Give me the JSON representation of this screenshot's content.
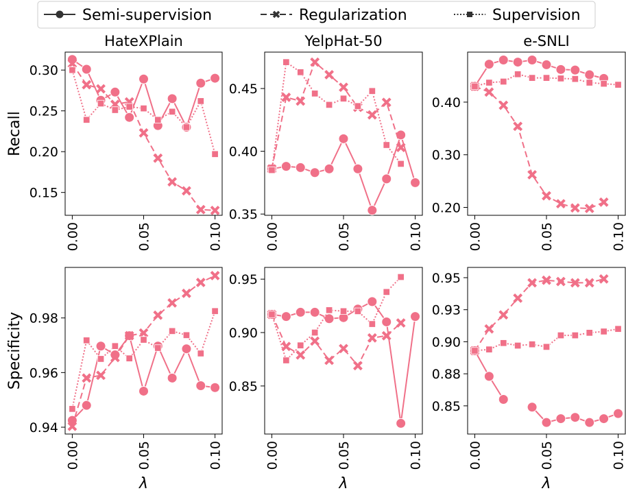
{
  "figure": {
    "legend": [
      {
        "name": "Semi-supervision",
        "style": "solid",
        "marker": "circle"
      },
      {
        "name": "Regularization",
        "style": "dashed",
        "marker": "x"
      },
      {
        "name": "Supervision",
        "style": "dotted",
        "marker": "square"
      }
    ],
    "row_labels": [
      "Recall",
      "Specificity"
    ],
    "xlabel": "λ",
    "color": "#f07088",
    "legend_placement": "top-center"
  },
  "chart_data": [
    {
      "type": "line",
      "title": "HateXPlain",
      "ylabel": "Recall",
      "xlabel": "",
      "x": [
        0,
        0.01,
        0.02,
        0.03,
        0.04,
        0.05,
        0.06,
        0.07,
        0.08,
        0.09,
        0.1
      ],
      "xlim": [
        -0.005,
        0.105
      ],
      "xticks": [
        0,
        0.05,
        0.1
      ],
      "xticklabels": [
        "0.00",
        "0.05",
        "0.10"
      ],
      "ylim": [
        0.122,
        0.322
      ],
      "yticks": [
        0.15,
        0.2,
        0.25,
        0.3
      ],
      "yticklabels": [
        "0.15",
        "0.20",
        "0.25",
        "0.30"
      ],
      "series": [
        {
          "name": "Semi-supervision",
          "values": [
            0.313,
            0.301,
            0.263,
            0.273,
            0.242,
            0.289,
            0.232,
            0.265,
            0.23,
            0.284,
            0.29
          ]
        },
        {
          "name": "Regularization",
          "values": [
            0.308,
            0.282,
            0.277,
            0.258,
            0.261,
            0.223,
            0.192,
            0.163,
            0.152,
            0.129,
            0.128
          ]
        },
        {
          "name": "Supervision",
          "values": [
            0.3,
            0.239,
            0.259,
            0.251,
            0.255,
            0.253,
            0.239,
            0.249,
            0.23,
            0.262,
            0.197
          ]
        }
      ]
    },
    {
      "type": "line",
      "title": "YelpHat-50",
      "ylabel": "",
      "xlabel": "",
      "x": [
        0,
        0.01,
        0.02,
        0.03,
        0.04,
        0.05,
        0.06,
        0.07,
        0.08,
        0.09,
        0.1
      ],
      "xlim": [
        -0.005,
        0.105
      ],
      "xticks": [
        0,
        0.05,
        0.1
      ],
      "xticklabels": [
        "0.00",
        "0.05",
        "0.10"
      ],
      "ylim": [
        0.349,
        0.479
      ],
      "yticks": [
        0.35,
        0.4,
        0.45
      ],
      "yticklabels": [
        "0.35",
        "0.40",
        "0.45"
      ],
      "series": [
        {
          "name": "Semi-supervision",
          "values": [
            0.386,
            0.388,
            0.387,
            0.383,
            0.386,
            0.41,
            0.386,
            0.353,
            0.378,
            0.413,
            0.375
          ]
        },
        {
          "name": "Regularization",
          "values": [
            0.386,
            0.443,
            0.44,
            0.471,
            0.461,
            0.451,
            0.435,
            0.429,
            0.439,
            0.403,
            null
          ]
        },
        {
          "name": "Supervision",
          "values": [
            0.385,
            0.471,
            0.463,
            0.446,
            0.437,
            0.442,
            0.436,
            0.448,
            0.405,
            0.39,
            null
          ]
        }
      ]
    },
    {
      "type": "line",
      "title": "e-SNLI",
      "ylabel": "",
      "xlabel": "",
      "x": [
        0,
        0.01,
        0.02,
        0.03,
        0.04,
        0.05,
        0.06,
        0.07,
        0.08,
        0.09,
        0.1
      ],
      "xlim": [
        -0.005,
        0.105
      ],
      "xticks": [
        0,
        0.05,
        0.1
      ],
      "xticklabels": [
        "0.00",
        "0.05",
        "0.10"
      ],
      "ylim": [
        0.185,
        0.495
      ],
      "yticks": [
        0.2,
        0.3,
        0.4
      ],
      "yticklabels": [
        "0.20",
        "0.30",
        "0.40"
      ],
      "series": [
        {
          "name": "Semi-supervision",
          "values": [
            0.43,
            0.472,
            0.48,
            0.476,
            0.48,
            0.471,
            0.462,
            0.461,
            0.452,
            0.445,
            null
          ]
        },
        {
          "name": "Regularization",
          "values": [
            0.43,
            0.419,
            0.394,
            0.354,
            0.262,
            0.222,
            0.207,
            0.199,
            0.198,
            0.21,
            null
          ]
        },
        {
          "name": "Supervision",
          "values": [
            0.43,
            0.437,
            0.439,
            0.453,
            0.446,
            0.446,
            0.445,
            0.444,
            0.437,
            0.435,
            0.433
          ]
        }
      ]
    },
    {
      "type": "line",
      "title": "",
      "ylabel": "Specificity",
      "xlabel": "λ",
      "x": [
        0,
        0.01,
        0.02,
        0.03,
        0.04,
        0.05,
        0.06,
        0.07,
        0.08,
        0.09,
        0.1
      ],
      "xlim": [
        -0.005,
        0.105
      ],
      "xticks": [
        0,
        0.05,
        0.1
      ],
      "xticklabels": [
        "0.00",
        "0.05",
        "0.10"
      ],
      "ylim": [
        0.9375,
        0.9985
      ],
      "yticks": [
        0.94,
        0.96,
        0.98
      ],
      "yticklabels": [
        "0.94",
        "0.96",
        "0.98"
      ],
      "series": [
        {
          "name": "Semi-supervision",
          "values": [
            0.9425,
            0.948,
            0.9697,
            0.9665,
            0.9735,
            0.9532,
            0.9697,
            0.958,
            0.9687,
            0.9552,
            0.9545
          ]
        },
        {
          "name": "Regularization",
          "values": [
            0.9403,
            0.958,
            0.959,
            0.9655,
            0.9735,
            0.9745,
            0.981,
            0.9855,
            0.989,
            0.993,
            0.9955
          ]
        },
        {
          "name": "Supervision",
          "values": [
            0.9467,
            0.9718,
            0.965,
            0.9697,
            0.9652,
            0.972,
            0.969,
            0.9752,
            0.9737,
            0.967,
            0.9825
          ]
        }
      ]
    },
    {
      "type": "line",
      "title": "",
      "ylabel": "",
      "xlabel": "λ",
      "x": [
        0,
        0.01,
        0.02,
        0.03,
        0.04,
        0.05,
        0.06,
        0.07,
        0.08,
        0.09,
        0.1
      ],
      "xlim": [
        -0.005,
        0.105
      ],
      "xticks": [
        0,
        0.05,
        0.1
      ],
      "xticklabels": [
        "0.00",
        "0.05",
        "0.10"
      ],
      "ylim": [
        0.805,
        0.961
      ],
      "yticks": [
        0.85,
        0.9,
        0.95
      ],
      "yticklabels": [
        "0.85",
        "0.90",
        "0.95"
      ],
      "series": [
        {
          "name": "Semi-supervision",
          "values": [
            0.917,
            0.915,
            0.919,
            0.919,
            0.913,
            0.914,
            0.922,
            0.929,
            0.91,
            0.815,
            0.915
          ]
        },
        {
          "name": "Regularization",
          "values": [
            0.917,
            0.887,
            0.879,
            0.892,
            0.874,
            0.885,
            0.869,
            0.895,
            0.897,
            0.909,
            null
          ]
        },
        {
          "name": "Supervision",
          "values": [
            0.917,
            0.874,
            0.888,
            0.9,
            0.921,
            0.92,
            0.92,
            0.908,
            0.938,
            0.952,
            null
          ]
        }
      ]
    },
    {
      "type": "line",
      "title": "",
      "ylabel": "",
      "xlabel": "λ",
      "x": [
        0,
        0.01,
        0.02,
        0.03,
        0.04,
        0.05,
        0.06,
        0.07,
        0.08,
        0.09,
        0.1
      ],
      "xlim": [
        -0.005,
        0.105
      ],
      "xticks": [
        0,
        0.05,
        0.1
      ],
      "xticklabels": [
        "0.00",
        "0.05",
        "0.10"
      ],
      "ylim": [
        0.828,
        0.958
      ],
      "yticks": [
        0.85,
        0.875,
        0.9,
        0.925,
        0.95
      ],
      "yticklabels": [
        "0.85",
        "0.88",
        "0.90",
        "0.93",
        "0.95"
      ],
      "series": [
        {
          "name": "Semi-supervision",
          "values": [
            0.893,
            0.873,
            0.855,
            null,
            0.849,
            0.837,
            0.84,
            0.841,
            0.837,
            0.84,
            0.844
          ]
        },
        {
          "name": "Regularization",
          "values": [
            0.893,
            0.91,
            0.921,
            0.934,
            0.946,
            0.948,
            0.947,
            0.946,
            0.946,
            0.949,
            null
          ]
        },
        {
          "name": "Supervision",
          "values": [
            0.893,
            0.894,
            0.899,
            0.897,
            0.898,
            0.896,
            0.905,
            0.905,
            0.907,
            0.908,
            0.91
          ]
        }
      ]
    }
  ]
}
